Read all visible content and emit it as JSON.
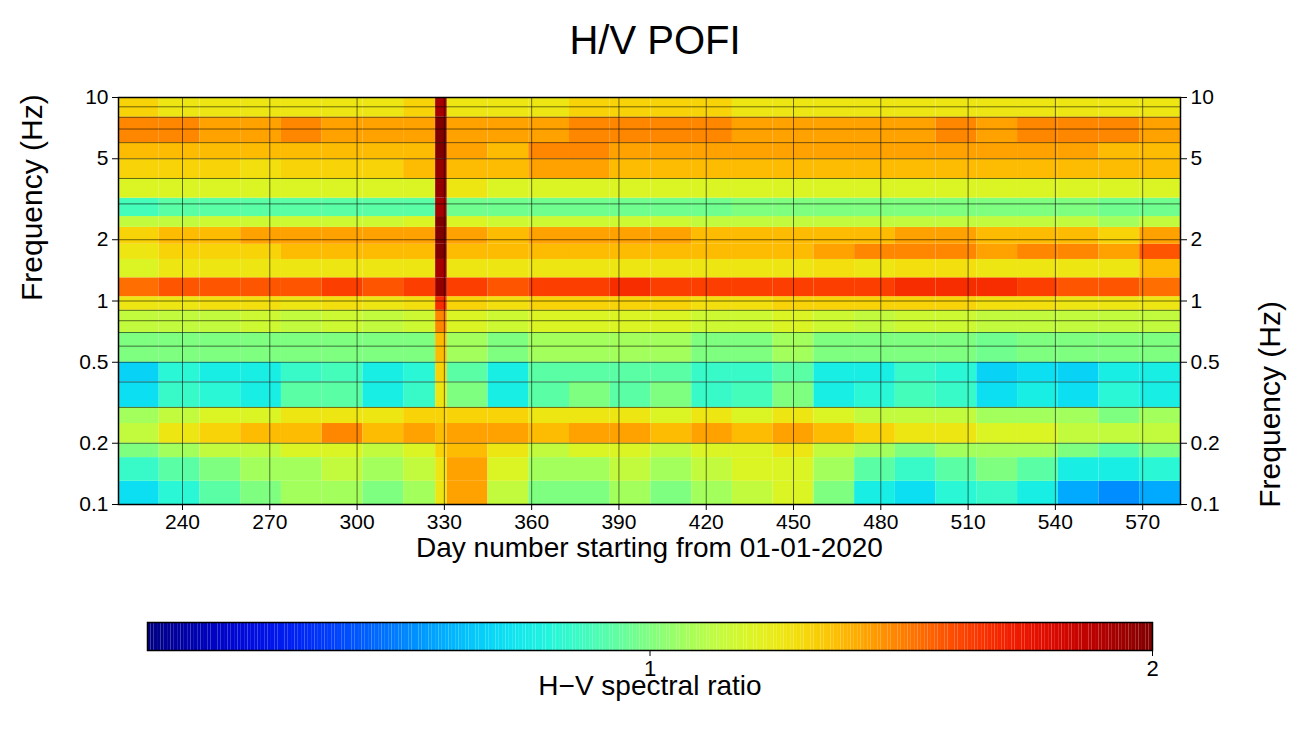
{
  "chart_data": {
    "type": "heatmap",
    "title": "H/V POFI",
    "x_label": "Day number starting from 01-01-2020",
    "y_label": "Frequency (Hz)",
    "xlim": [
      218,
      583
    ],
    "xticks": [
      240,
      270,
      300,
      330,
      360,
      390,
      420,
      450,
      480,
      510,
      540,
      570
    ],
    "ylim": [
      0.1,
      10
    ],
    "yticks": [
      0.1,
      0.2,
      0.5,
      1,
      2,
      5,
      10
    ],
    "y_grid": [
      0.1,
      0.2,
      0.3,
      0.4,
      0.5,
      0.6,
      0.7,
      0.8,
      0.9,
      1,
      2,
      3,
      4,
      5,
      6,
      7,
      8,
      9,
      10
    ],
    "log": "y",
    "grid": true,
    "x_edges": [
      218,
      232,
      246,
      260,
      274,
      288,
      302,
      316,
      327,
      331,
      345,
      359,
      373,
      387,
      401,
      415,
      429,
      443,
      457,
      471,
      485,
      499,
      513,
      527,
      541,
      555,
      569,
      583
    ],
    "y_edges": [
      0.1,
      0.13,
      0.17,
      0.2,
      0.25,
      0.3,
      0.4,
      0.5,
      0.7,
      0.9,
      1.05,
      1.3,
      1.6,
      1.9,
      2.3,
      2.6,
      3.2,
      4,
      5,
      6,
      8,
      10
    ],
    "cells": [
      [
        0.82,
        0.88,
        0.95,
        1.0,
        1.05,
        1.05,
        1.0,
        1.05,
        1.2,
        1.35,
        1.1,
        1.0,
        1.0,
        1.05,
        1.0,
        1.05,
        1.1,
        1.15,
        1.0,
        0.85,
        0.82,
        0.88,
        0.9,
        0.85,
        0.75,
        0.72,
        0.75
      ],
      [
        0.9,
        0.95,
        1.0,
        1.05,
        1.05,
        1.1,
        1.05,
        1.1,
        1.2,
        1.35,
        1.15,
        1.05,
        1.05,
        1.1,
        1.05,
        1.1,
        1.15,
        1.15,
        1.05,
        0.95,
        0.9,
        0.95,
        1.0,
        0.95,
        0.85,
        0.85,
        0.88
      ],
      [
        1.0,
        1.05,
        1.1,
        1.1,
        1.15,
        1.15,
        1.1,
        1.15,
        1.25,
        1.3,
        1.2,
        1.1,
        1.15,
        1.15,
        1.1,
        1.15,
        1.15,
        1.2,
        1.1,
        1.05,
        1.0,
        1.05,
        1.05,
        1.05,
        1.0,
        0.95,
        1.0
      ],
      [
        1.1,
        1.2,
        1.25,
        1.3,
        1.3,
        1.4,
        1.3,
        1.35,
        1.3,
        1.35,
        1.35,
        1.3,
        1.35,
        1.35,
        1.3,
        1.35,
        1.3,
        1.35,
        1.3,
        1.25,
        1.2,
        1.2,
        1.15,
        1.15,
        1.1,
        1.1,
        1.1
      ],
      [
        1.05,
        1.1,
        1.15,
        1.15,
        1.2,
        1.2,
        1.2,
        1.25,
        1.25,
        1.25,
        1.25,
        1.2,
        1.2,
        1.2,
        1.15,
        1.2,
        1.15,
        1.2,
        1.15,
        1.1,
        1.1,
        1.1,
        1.05,
        1.05,
        1.05,
        1.0,
        1.05
      ],
      [
        0.82,
        0.9,
        0.88,
        0.85,
        0.95,
        0.95,
        0.85,
        0.9,
        1.2,
        1.0,
        0.85,
        0.95,
        1.0,
        0.95,
        1.0,
        0.9,
        0.92,
        1.0,
        0.85,
        0.88,
        0.92,
        0.9,
        0.82,
        0.85,
        0.82,
        0.88,
        0.85
      ],
      [
        0.8,
        0.88,
        0.85,
        0.85,
        0.9,
        0.92,
        0.85,
        0.88,
        1.25,
        0.95,
        0.85,
        0.95,
        0.95,
        0.95,
        0.95,
        0.9,
        0.9,
        0.95,
        0.85,
        0.85,
        0.9,
        0.88,
        0.8,
        0.82,
        0.8,
        0.85,
        0.85
      ],
      [
        1.0,
        1.0,
        1.0,
        1.0,
        1.0,
        1.0,
        1.0,
        1.0,
        1.3,
        1.05,
        1.0,
        1.05,
        1.05,
        1.05,
        1.05,
        1.0,
        1.0,
        1.05,
        1.0,
        1.0,
        1.0,
        1.0,
        0.98,
        1.0,
        1.0,
        1.0,
        1.0
      ],
      [
        1.1,
        1.1,
        1.1,
        1.12,
        1.1,
        1.12,
        1.1,
        1.12,
        1.4,
        1.15,
        1.12,
        1.15,
        1.15,
        1.15,
        1.15,
        1.12,
        1.12,
        1.15,
        1.12,
        1.1,
        1.12,
        1.12,
        1.1,
        1.1,
        1.1,
        1.1,
        1.1
      ],
      [
        1.2,
        1.2,
        1.22,
        1.22,
        1.2,
        1.22,
        1.2,
        1.22,
        1.6,
        1.25,
        1.22,
        1.25,
        1.25,
        1.25,
        1.25,
        1.22,
        1.22,
        1.25,
        1.25,
        1.25,
        1.25,
        1.25,
        1.22,
        1.22,
        1.2,
        1.2,
        1.2
      ],
      [
        1.45,
        1.5,
        1.5,
        1.5,
        1.5,
        1.55,
        1.5,
        1.55,
        1.95,
        1.55,
        1.5,
        1.55,
        1.55,
        1.6,
        1.55,
        1.55,
        1.55,
        1.55,
        1.55,
        1.55,
        1.6,
        1.6,
        1.6,
        1.55,
        1.5,
        1.5,
        1.45
      ],
      [
        1.15,
        1.2,
        1.2,
        1.2,
        1.2,
        1.2,
        1.2,
        1.2,
        1.9,
        1.2,
        1.2,
        1.2,
        1.2,
        1.2,
        1.2,
        1.2,
        1.2,
        1.2,
        1.22,
        1.2,
        1.22,
        1.22,
        1.2,
        1.2,
        1.2,
        1.2,
        1.3
      ],
      [
        1.2,
        1.25,
        1.25,
        1.25,
        1.3,
        1.3,
        1.3,
        1.3,
        2.0,
        1.3,
        1.3,
        1.3,
        1.3,
        1.3,
        1.3,
        1.3,
        1.3,
        1.3,
        1.35,
        1.4,
        1.4,
        1.4,
        1.35,
        1.4,
        1.4,
        1.35,
        1.5
      ],
      [
        1.25,
        1.3,
        1.3,
        1.35,
        1.35,
        1.35,
        1.35,
        1.35,
        2.0,
        1.35,
        1.3,
        1.35,
        1.35,
        1.35,
        1.35,
        1.3,
        1.3,
        1.3,
        1.3,
        1.3,
        1.35,
        1.35,
        1.3,
        1.3,
        1.3,
        1.25,
        1.35
      ],
      [
        1.1,
        1.1,
        1.12,
        1.12,
        1.12,
        1.12,
        1.12,
        1.15,
        2.0,
        1.15,
        1.12,
        1.12,
        1.12,
        1.12,
        1.12,
        1.1,
        1.1,
        1.1,
        1.1,
        1.1,
        1.1,
        1.1,
        1.1,
        1.1,
        1.1,
        1.05,
        1.1
      ],
      [
        0.92,
        0.95,
        0.95,
        0.95,
        0.95,
        0.95,
        0.95,
        0.95,
        1.9,
        0.98,
        0.98,
        0.98,
        0.98,
        0.98,
        0.98,
        0.98,
        1.0,
        1.0,
        1.0,
        1.0,
        1.0,
        1.0,
        1.0,
        1.0,
        1.0,
        0.98,
        0.98
      ],
      [
        1.15,
        1.15,
        1.15,
        1.15,
        1.15,
        1.15,
        1.15,
        1.15,
        1.95,
        1.2,
        1.15,
        1.15,
        1.15,
        1.15,
        1.15,
        1.15,
        1.15,
        1.15,
        1.15,
        1.15,
        1.15,
        1.15,
        1.15,
        1.15,
        1.15,
        1.15,
        1.15
      ],
      [
        1.25,
        1.25,
        1.25,
        1.22,
        1.25,
        1.25,
        1.25,
        1.3,
        1.95,
        1.3,
        1.3,
        1.35,
        1.35,
        1.3,
        1.3,
        1.3,
        1.3,
        1.3,
        1.3,
        1.3,
        1.3,
        1.3,
        1.3,
        1.3,
        1.3,
        1.3,
        1.3
      ],
      [
        1.3,
        1.3,
        1.3,
        1.3,
        1.3,
        1.3,
        1.3,
        1.3,
        2.0,
        1.35,
        1.3,
        1.4,
        1.4,
        1.35,
        1.35,
        1.35,
        1.35,
        1.35,
        1.35,
        1.35,
        1.35,
        1.35,
        1.35,
        1.35,
        1.35,
        1.3,
        1.3
      ],
      [
        1.4,
        1.4,
        1.35,
        1.35,
        1.4,
        1.35,
        1.35,
        1.35,
        2.0,
        1.35,
        1.35,
        1.35,
        1.4,
        1.4,
        1.4,
        1.4,
        1.35,
        1.35,
        1.35,
        1.35,
        1.35,
        1.4,
        1.35,
        1.4,
        1.4,
        1.4,
        1.35
      ],
      [
        1.25,
        1.2,
        1.2,
        1.2,
        1.2,
        1.2,
        1.2,
        1.25,
        1.9,
        1.2,
        1.2,
        1.2,
        1.25,
        1.25,
        1.25,
        1.25,
        1.2,
        1.2,
        1.2,
        1.2,
        1.2,
        1.2,
        1.2,
        1.2,
        1.2,
        1.2,
        1.2
      ]
    ],
    "colorbar": {
      "label": "H−V spectral ratio",
      "range": [
        0.5,
        2
      ],
      "ticks": [
        1,
        2
      ],
      "log": true
    }
  }
}
